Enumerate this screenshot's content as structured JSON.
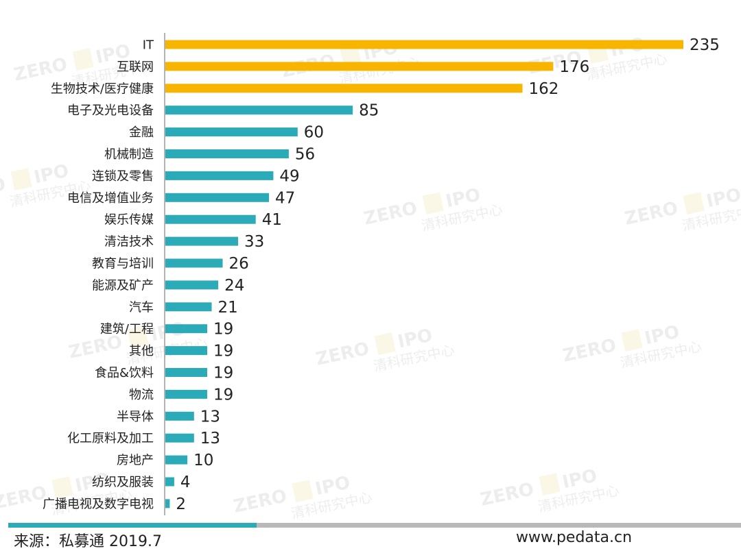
{
  "colors": {
    "highlight": "#F7B500",
    "regular": "#2BAAB8",
    "axis": "#9a9a9a",
    "label": "#222222",
    "footer_primary": "#2BAAB8",
    "footer_secondary": "#b9b9b9"
  },
  "chart_data": {
    "type": "bar",
    "orientation": "horizontal",
    "categories": [
      "IT",
      "互联网",
      "生物技术/医疗健康",
      "电子及光电设备",
      "金融",
      "机械制造",
      "连锁及零售",
      "电信及增值业务",
      "娱乐传媒",
      "清洁技术",
      "教育与培训",
      "能源及矿产",
      "汽车",
      "建筑/工程",
      "其他",
      "食品&饮料",
      "物流",
      "半导体",
      "化工原料及加工",
      "房地产",
      "纺织及服装",
      "广播电视及数字电视"
    ],
    "values": [
      235,
      176,
      162,
      85,
      60,
      56,
      49,
      47,
      41,
      33,
      26,
      24,
      21,
      19,
      19,
      19,
      19,
      13,
      13,
      10,
      4,
      2
    ],
    "highlight_count": 3,
    "xlim": [
      0,
      235
    ],
    "grid": false,
    "data_labels": true
  },
  "footer": {
    "source": "来源：私募通 2019.7",
    "website": "www.pedata.cn"
  }
}
